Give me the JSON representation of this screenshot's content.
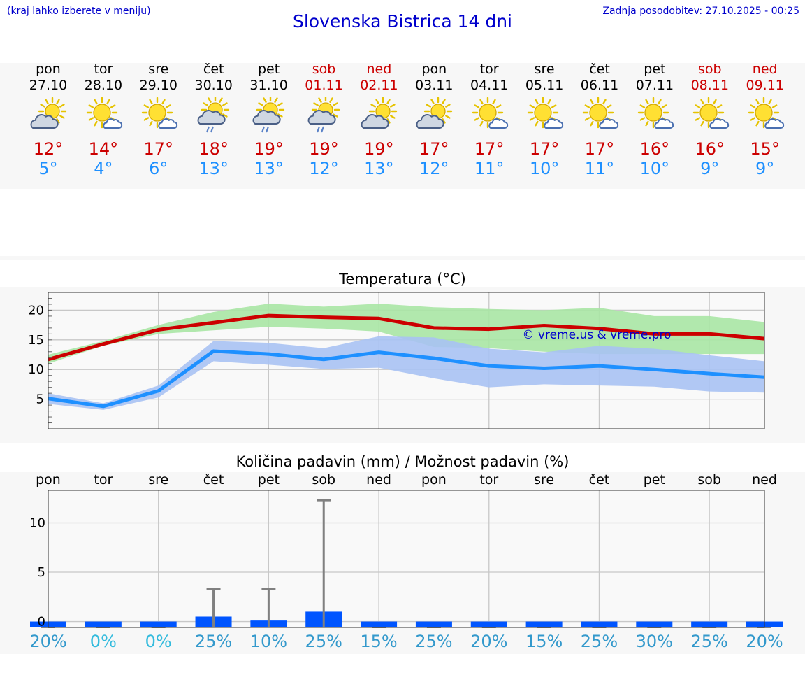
{
  "header": {
    "hint": "(kraj lahko izberete v meniju)",
    "title": "Slovenska Bistrica 14 dni",
    "updated": "Zadnja posodobitev: 27.10.2025 - 00:25"
  },
  "colors": {
    "max": "#cc0000",
    "min": "#1e90ff",
    "max_band": "#a8e6a4",
    "min_band": "#a9c2f3",
    "bar": "#0055ff",
    "whisker": "#808080",
    "prob_low": "#33bbdd",
    "prob": "#3399cc"
  },
  "days": [
    {
      "name": "pon",
      "date": "27.10",
      "icon": "partly-cloudy-icon",
      "tmax": "12°",
      "tmin": "5°",
      "weekend": false
    },
    {
      "name": "tor",
      "date": "28.10",
      "icon": "mostly-sunny-icon",
      "tmax": "14°",
      "tmin": "4°",
      "weekend": false
    },
    {
      "name": "sre",
      "date": "29.10",
      "icon": "mostly-sunny-icon",
      "tmax": "17°",
      "tmin": "6°",
      "weekend": false
    },
    {
      "name": "čet",
      "date": "30.10",
      "icon": "cloud-rain-sun-icon",
      "tmax": "18°",
      "tmin": "13°",
      "weekend": false
    },
    {
      "name": "pet",
      "date": "31.10",
      "icon": "cloud-rain-sun-icon",
      "tmax": "19°",
      "tmin": "13°",
      "weekend": false
    },
    {
      "name": "sob",
      "date": "01.11",
      "icon": "cloud-rain-sun-icon",
      "tmax": "19°",
      "tmin": "12°",
      "weekend": true
    },
    {
      "name": "ned",
      "date": "02.11",
      "icon": "partly-cloudy-icon",
      "tmax": "19°",
      "tmin": "13°",
      "weekend": true
    },
    {
      "name": "pon",
      "date": "03.11",
      "icon": "partly-cloudy-icon",
      "tmax": "17°",
      "tmin": "12°",
      "weekend": false
    },
    {
      "name": "tor",
      "date": "04.11",
      "icon": "mostly-sunny-icon",
      "tmax": "17°",
      "tmin": "11°",
      "weekend": false
    },
    {
      "name": "sre",
      "date": "05.11",
      "icon": "mostly-sunny-icon",
      "tmax": "17°",
      "tmin": "10°",
      "weekend": false
    },
    {
      "name": "čet",
      "date": "06.11",
      "icon": "mostly-sunny-icon",
      "tmax": "17°",
      "tmin": "11°",
      "weekend": false
    },
    {
      "name": "pet",
      "date": "07.11",
      "icon": "mostly-sunny-icon",
      "tmax": "16°",
      "tmin": "10°",
      "weekend": false
    },
    {
      "name": "sob",
      "date": "08.11",
      "icon": "mostly-sunny-icon",
      "tmax": "16°",
      "tmin": "9°",
      "weekend": true
    },
    {
      "name": "ned",
      "date": "09.11",
      "icon": "mostly-sunny-icon",
      "tmax": "15°",
      "tmin": "9°",
      "weekend": true
    }
  ],
  "chart_data": [
    {
      "type": "line",
      "title": "Temperatura (°C)",
      "watermark": "© vreme.us & vreme.pro",
      "x": [
        0,
        1,
        2,
        3,
        4,
        5,
        6,
        7,
        8,
        9,
        10,
        11,
        12,
        13
      ],
      "ylim": [
        0,
        23
      ],
      "yticks": [
        5,
        10,
        15,
        20
      ],
      "grid": true,
      "series": [
        {
          "key": "max",
          "values": [
            11.7,
            14.3,
            16.7,
            17.9,
            19.1,
            18.8,
            18.6,
            17.0,
            16.8,
            17.4,
            16.9,
            16.0,
            16.0,
            15.2
          ],
          "band_low": [
            11.0,
            14.0,
            16.0,
            16.6,
            17.2,
            16.9,
            16.4,
            13.8,
            13.6,
            13.0,
            12.6,
            12.6,
            12.6,
            12.6
          ],
          "band_high": [
            12.5,
            14.8,
            17.5,
            19.7,
            21.1,
            20.6,
            21.1,
            20.5,
            20.2,
            20.0,
            20.4,
            19.0,
            19.0,
            18.0
          ]
        },
        {
          "key": "min",
          "values": [
            5.1,
            3.8,
            6.4,
            13.1,
            12.6,
            11.7,
            12.9,
            11.9,
            10.6,
            10.2,
            10.6,
            10.0,
            9.3,
            8.7
          ],
          "band_low": [
            4.2,
            3.2,
            5.3,
            11.4,
            10.8,
            10.1,
            10.3,
            8.5,
            7.0,
            7.5,
            7.3,
            7.1,
            6.3,
            6.1
          ],
          "band_high": [
            6.0,
            4.3,
            7.3,
            14.8,
            14.5,
            13.6,
            15.6,
            15.4,
            13.5,
            12.9,
            14.0,
            13.5,
            12.4,
            11.4
          ]
        }
      ]
    },
    {
      "type": "bar",
      "title": "Količina padavin (mm) / Možnost padavin (%)",
      "categories": [
        "pon",
        "tor",
        "sre",
        "čet",
        "pet",
        "sob",
        "ned",
        "pon",
        "tor",
        "sre",
        "čet",
        "pet",
        "sob",
        "ned"
      ],
      "values": [
        0,
        0,
        0,
        0.5,
        0.1,
        1.0,
        0,
        0,
        0,
        0,
        0,
        0,
        0,
        0
      ],
      "upper": [
        0,
        0,
        0,
        3.3,
        3.3,
        12.3,
        0,
        0,
        0,
        0,
        0,
        0,
        0,
        0
      ],
      "probability": [
        "20%",
        "0%",
        "0%",
        "25%",
        "10%",
        "25%",
        "15%",
        "25%",
        "20%",
        "15%",
        "25%",
        "30%",
        "25%",
        "20%"
      ],
      "ylim": [
        -0.6,
        13.3
      ],
      "yticks": [
        0,
        5,
        10
      ],
      "grid": true
    }
  ]
}
